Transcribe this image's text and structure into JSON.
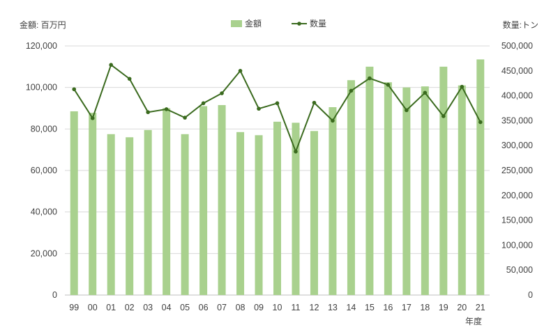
{
  "chart_data": {
    "type": "bar+line",
    "left_axis_title": "金額: 百万円",
    "right_axis_title": "数量:トン",
    "x_axis_unit_label": "年度",
    "categories": [
      "99",
      "00",
      "01",
      "02",
      "03",
      "04",
      "05",
      "06",
      "07",
      "08",
      "09",
      "10",
      "11",
      "12",
      "13",
      "14",
      "15",
      "16",
      "17",
      "18",
      "19",
      "20",
      "21"
    ],
    "series": [
      {
        "name": "金額",
        "type": "bar",
        "axis": "left",
        "color": "#a9d18e",
        "values": [
          88500,
          87800,
          77500,
          76000,
          79500,
          90000,
          77500,
          91000,
          91500,
          78500,
          77000,
          83500,
          83000,
          79000,
          90500,
          103500,
          110000,
          102500,
          100000,
          100500,
          110000,
          101000,
          113500
        ]
      },
      {
        "name": "数量",
        "type": "line",
        "axis": "right",
        "color": "#3a6a1e",
        "values": [
          413000,
          355000,
          462000,
          434000,
          367000,
          373000,
          356000,
          385000,
          405000,
          450000,
          374000,
          385000,
          288000,
          386000,
          350000,
          410000,
          435000,
          422000,
          371000,
          406000,
          359000,
          418000,
          347000
        ]
      }
    ],
    "y_left": {
      "min": 0,
      "max": 120000,
      "step": 20000,
      "tick_labels": [
        "0",
        "20,000",
        "40,000",
        "60,000",
        "80,000",
        "100,000",
        "120,000"
      ]
    },
    "y_right": {
      "min": 0,
      "max": 500000,
      "step": 50000,
      "tick_labels": [
        "0",
        "50,000",
        "100,000",
        "150,000",
        "200,000",
        "250,000",
        "300,000",
        "350,000",
        "400,000",
        "450,000",
        "500,000"
      ]
    },
    "grid": true,
    "legend_position": "top-center"
  }
}
